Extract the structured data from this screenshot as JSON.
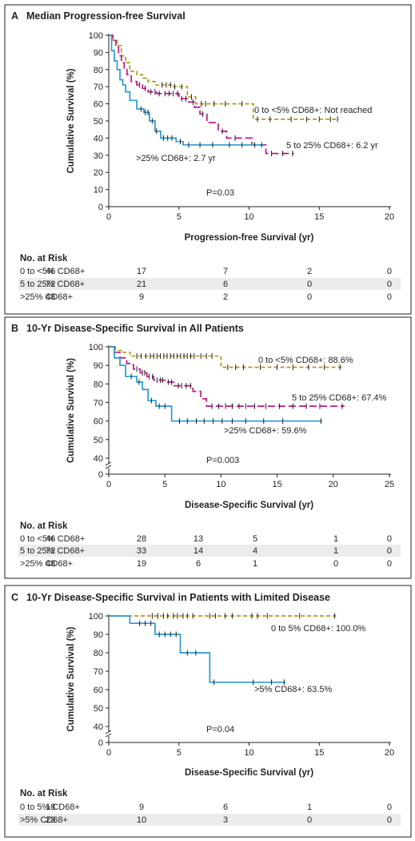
{
  "chart_data": [
    {
      "type": "line",
      "panel": "A",
      "title": "Median Progression-free Survival",
      "xlabel": "Progression-free Survival (yr)",
      "ylabel": "Cumulative Survival (%)",
      "xlim": [
        0,
        20
      ],
      "ylim": [
        0,
        100
      ],
      "xticks": [
        "0",
        "5",
        "10",
        "15",
        "20"
      ],
      "yticks": [
        "0",
        "10",
        "20",
        "30",
        "40",
        "50",
        "60",
        "70",
        "80",
        "90",
        "100"
      ],
      "axis_break": false,
      "p_value": "P=0.03",
      "series": [
        {
          "name": "0 to <5% CD68+",
          "color": "#b8961e",
          "dash": "dashed",
          "label": "0 to <5% CD68+: Not reached",
          "x": [
            0,
            0.3,
            0.6,
            0.9,
            1.2,
            1.5,
            2.0,
            2.4,
            2.8,
            3.3,
            4.5,
            5.6,
            6.2,
            10.3,
            16.4
          ],
          "y": [
            100,
            97,
            94,
            88,
            84,
            79,
            77,
            75,
            73,
            71,
            70,
            64,
            60,
            51,
            51
          ],
          "censor_x": [
            3.8,
            4.1,
            4.4,
            4.7,
            5.2,
            5.9,
            6.6,
            6.9,
            7.5,
            8.3,
            9.5,
            10.6,
            11.5,
            13.0,
            14.1,
            15.0,
            15.8,
            16.3
          ]
        },
        {
          "name": "5 to 25% CD68+",
          "color": "#c2168b",
          "dash": "long-dashed",
          "label": "5 to 25% CD68+: 6.2 yr",
          "x": [
            0,
            0.3,
            0.5,
            0.7,
            0.9,
            1.1,
            1.3,
            1.6,
            2.0,
            2.4,
            2.8,
            3.4,
            5.0,
            5.7,
            6.1,
            6.5,
            7.0,
            7.8,
            8.4,
            10.2,
            11.2,
            13.2
          ],
          "y": [
            100,
            97,
            93,
            88,
            84,
            80,
            77,
            73,
            71,
            69,
            67,
            66,
            63,
            61,
            58,
            54,
            49,
            44,
            40,
            36,
            31,
            31
          ],
          "censor_x": [
            2.2,
            2.6,
            3.0,
            3.3,
            3.6,
            4.0,
            4.3,
            4.6,
            4.9,
            5.2,
            5.5,
            6.0,
            6.7,
            8.1,
            9.0,
            11.6,
            12.4,
            13.1
          ]
        },
        {
          "name": ">25% CD68+",
          "color": "#2b9bd0",
          "dash": "solid",
          "label": ">25% CD68+: 2.7 yr",
          "x": [
            0,
            0.2,
            0.4,
            0.6,
            0.8,
            1.0,
            1.2,
            1.5,
            2.0,
            2.5,
            2.9,
            3.3,
            3.7,
            4.8,
            5.3,
            11.0
          ],
          "y": [
            100,
            91,
            85,
            80,
            74,
            71,
            67,
            62,
            57,
            55,
            50,
            44,
            40,
            38,
            36,
            36
          ],
          "censor_x": [
            2.3,
            2.6,
            2.8,
            3.1,
            3.4,
            3.9,
            4.2,
            4.5,
            5.1,
            5.7,
            6.5,
            7.4,
            8.6,
            9.5,
            10.4,
            10.9
          ]
        }
      ],
      "risk_table": {
        "title": "No. at Risk",
        "rows": [
          {
            "label": "0 to <5% CD68+",
            "values": [
              "46",
              "17",
              "7",
              "2",
              "0"
            ],
            "shaded": false
          },
          {
            "label": "5 to 25% CD68+",
            "values": [
              "72",
              "21",
              "6",
              "0",
              "0"
            ],
            "shaded": true
          },
          {
            "label": ">25% CD68+",
            "values": [
              "48",
              "9",
              "2",
              "0",
              "0"
            ],
            "shaded": false
          }
        ]
      }
    },
    {
      "type": "line",
      "panel": "B",
      "title": "10-Yr Disease-Specific Survival in All Patients",
      "xlabel": "Disease-Specific Survival (yr)",
      "ylabel": "Cumulative Survival (%)",
      "xlim": [
        0,
        25
      ],
      "ylim": [
        40,
        100
      ],
      "xticks": [
        "0",
        "5",
        "10",
        "15",
        "20",
        "25"
      ],
      "yticks": [
        "40",
        "50",
        "60",
        "70",
        "80",
        "90",
        "100"
      ],
      "axis_break": true,
      "p_value": "P=0.003",
      "series": [
        {
          "name": "0 to <5% CD68+",
          "color": "#b8961e",
          "dash": "dashed",
          "label": "0 to <5% CD68+: 88.6%",
          "x": [
            0,
            0.6,
            1.3,
            1.9,
            10.0,
            21.0
          ],
          "y": [
            100,
            98,
            97,
            95,
            89,
            89
          ],
          "censor_x": [
            2.5,
            2.9,
            3.3,
            3.7,
            4.0,
            4.3,
            4.6,
            4.9,
            5.2,
            5.5,
            5.8,
            6.1,
            6.4,
            6.7,
            7.0,
            7.3,
            7.6,
            8.2,
            8.7,
            9.2,
            10.6,
            11.3,
            12.0,
            13.5,
            15.0,
            16.4,
            17.8,
            19.2,
            20.6
          ]
        },
        {
          "name": "5 to 25% CD68+",
          "color": "#c2168b",
          "dash": "long-dashed",
          "label": "5 to 25% CD68+: 67.4%",
          "x": [
            0,
            0.5,
            1.0,
            1.6,
            2.2,
            2.8,
            3.4,
            4.0,
            5.0,
            5.8,
            7.5,
            8.2,
            8.7,
            21.0
          ],
          "y": [
            100,
            97,
            94,
            91,
            88,
            86,
            84,
            82,
            81,
            79,
            76,
            72,
            68,
            68
          ],
          "censor_x": [
            2.5,
            3.0,
            3.2,
            3.6,
            3.9,
            4.3,
            4.6,
            4.8,
            5.3,
            5.6,
            6.2,
            6.5,
            6.9,
            7.3,
            9.2,
            9.8,
            10.4,
            11.0,
            11.6,
            12.2,
            13.0,
            14.0,
            15.2,
            16.4,
            17.6,
            18.8,
            20.8
          ]
        },
        {
          "name": ">25% CD68+",
          "color": "#2b9bd0",
          "dash": "solid",
          "label": ">25% CD68+: 59.6%",
          "x": [
            0,
            0.5,
            1.0,
            1.5,
            2.5,
            3.0,
            3.5,
            4.2,
            5.6,
            19.0
          ],
          "y": [
            100,
            94,
            90,
            84,
            81,
            77,
            71,
            68,
            60,
            60
          ],
          "censor_x": [
            2.0,
            2.7,
            3.8,
            4.5,
            5.0,
            6.3,
            7.0,
            7.8,
            8.5,
            9.3,
            10.1,
            11.0,
            12.2,
            13.8,
            15.5,
            18.9
          ]
        }
      ],
      "risk_table": {
        "title": "No. at Risk",
        "rows": [
          {
            "label": "0 to <5% CD68+",
            "values": [
              "46",
              "28",
              "13",
              "5",
              "1",
              "0"
            ],
            "shaded": false
          },
          {
            "label": "5 to 25% CD68+",
            "values": [
              "72",
              "33",
              "14",
              "4",
              "1",
              "0"
            ],
            "shaded": true
          },
          {
            "label": ">25% CD68+",
            "values": [
              "48",
              "19",
              "6",
              "1",
              "0",
              "0"
            ],
            "shaded": false
          }
        ]
      }
    },
    {
      "type": "line",
      "panel": "C",
      "title": "10-Yr Disease-Specific Survival in Patients with Limited Disease",
      "xlabel": "Disease-Specific Survival (yr)",
      "ylabel": "Cumulative Survival (%)",
      "xlim": [
        0,
        20
      ],
      "ylim": [
        40,
        100
      ],
      "xticks": [
        "0",
        "5",
        "10",
        "15",
        "20"
      ],
      "yticks": [
        "40",
        "50",
        "60",
        "70",
        "80",
        "90",
        "100"
      ],
      "axis_break": true,
      "p_value": "P=0.04",
      "series": [
        {
          "name": "0 to 5% CD68+",
          "color": "#b8961e",
          "dash": "dashed",
          "label": "0 to 5% CD68+: 100.0%",
          "x": [
            0,
            16.2
          ],
          "y": [
            100,
            100
          ],
          "censor_x": [
            3.1,
            3.5,
            3.9,
            4.2,
            4.6,
            4.9,
            5.3,
            5.6,
            6.0,
            7.2,
            7.6,
            8.3,
            8.8,
            10.2,
            10.6,
            11.3,
            13.6,
            16.1
          ]
        },
        {
          "name": ">5% CD68+",
          "color": "#2b9bd0",
          "dash": "solid",
          "label": ">5% CD68+: 63.5%",
          "x": [
            0,
            1.5,
            3.3,
            5.1,
            7.2,
            12.6
          ],
          "y": [
            100,
            96,
            90,
            80,
            64,
            64
          ],
          "censor_x": [
            2.2,
            2.6,
            3.0,
            3.6,
            4.0,
            4.4,
            4.8,
            5.6,
            6.2,
            7.5,
            10.3,
            11.6,
            12.5
          ]
        }
      ],
      "risk_table": {
        "title": "No. at Risk",
        "rows": [
          {
            "label": "0 to 5% CD68+",
            "values": [
              "18",
              "9",
              "6",
              "1",
              "0"
            ],
            "shaded": false
          },
          {
            "label": ">5% CD68+",
            "values": [
              "23",
              "10",
              "3",
              "0",
              "0"
            ],
            "shaded": true
          }
        ]
      }
    }
  ]
}
